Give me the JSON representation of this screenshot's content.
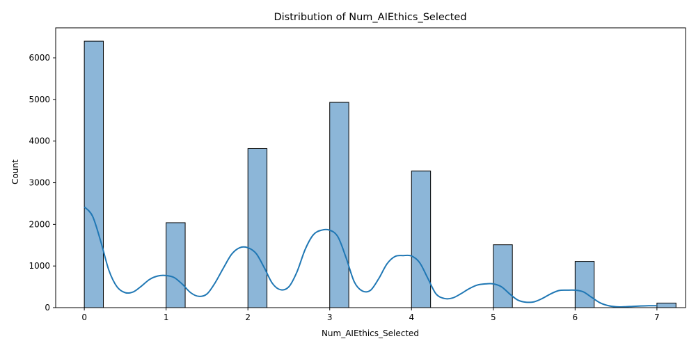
{
  "chart_data": {
    "type": "bar",
    "title": "Distribution of Num_AIEthics_Selected",
    "xlabel": "Num_AIEthics_Selected",
    "ylabel": "Count",
    "categories": [
      "0",
      "1",
      "2",
      "3",
      "4",
      "5",
      "6",
      "7"
    ],
    "values": [
      6400,
      2040,
      3820,
      4930,
      3280,
      1510,
      1110,
      110
    ],
    "bin_width": 0.233,
    "xlim": [
      -0.35,
      7.35
    ],
    "ylim": [
      0,
      6720
    ],
    "x_ticks": [
      0,
      1,
      2,
      3,
      4,
      5,
      6,
      7
    ],
    "y_ticks": [
      0,
      1000,
      2000,
      3000,
      4000,
      5000,
      6000
    ],
    "kde": {
      "x": [
        0,
        0.1,
        0.2,
        0.3,
        0.4,
        0.5,
        0.6,
        0.7,
        0.8,
        0.9,
        1.0,
        1.1,
        1.2,
        1.3,
        1.4,
        1.5,
        1.6,
        1.7,
        1.8,
        1.9,
        2.0,
        2.1,
        2.2,
        2.3,
        2.4,
        2.5,
        2.6,
        2.7,
        2.8,
        2.9,
        3.0,
        3.1,
        3.2,
        3.3,
        3.4,
        3.5,
        3.6,
        3.7,
        3.8,
        3.9,
        4.0,
        4.1,
        4.2,
        4.3,
        4.4,
        4.5,
        4.6,
        4.7,
        4.8,
        4.9,
        5.0,
        5.1,
        5.2,
        5.3,
        5.4,
        5.5,
        5.6,
        5.7,
        5.8,
        5.9,
        6.0,
        6.1,
        6.2,
        6.3,
        6.4,
        6.5,
        6.6,
        6.7,
        6.8,
        6.9,
        7.0
      ],
      "y": [
        2420,
        2200,
        1600,
        900,
        500,
        360,
        380,
        520,
        680,
        760,
        770,
        720,
        560,
        360,
        270,
        330,
        600,
        950,
        1280,
        1440,
        1440,
        1300,
        960,
        580,
        430,
        500,
        860,
        1400,
        1750,
        1860,
        1860,
        1700,
        1200,
        620,
        400,
        420,
        700,
        1050,
        1230,
        1250,
        1240,
        1080,
        700,
        330,
        220,
        230,
        330,
        450,
        540,
        570,
        570,
        500,
        330,
        180,
        130,
        140,
        220,
        330,
        410,
        420,
        420,
        380,
        250,
        120,
        50,
        20,
        20,
        30,
        40,
        45,
        45
      ]
    },
    "colors": {
      "bar_fill": "#8cb6d8",
      "bar_edge": "#000000",
      "kde_line": "#1f77b4"
    }
  }
}
